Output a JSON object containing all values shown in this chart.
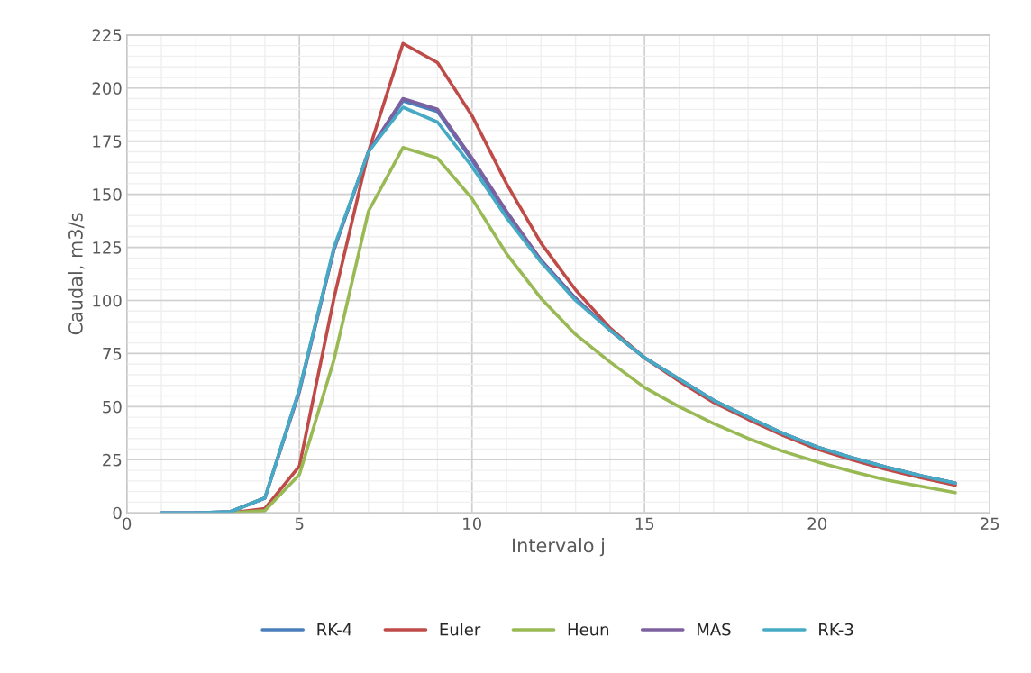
{
  "chart_data": {
    "type": "line",
    "xlabel": "Intervalo j",
    "ylabel": "Caudal, m3/s",
    "x": [
      1,
      2,
      3,
      4,
      5,
      6,
      7,
      8,
      9,
      10,
      11,
      12,
      13,
      14,
      15,
      16,
      17,
      18,
      19,
      20,
      21,
      22,
      23,
      24
    ],
    "series": [
      {
        "name": "RK-4",
        "color": "#4a7ebb",
        "values": [
          0,
          0,
          0.5,
          7,
          58,
          124,
          170,
          194,
          189,
          166,
          141,
          119,
          101,
          86,
          73,
          63,
          53,
          45,
          37.5,
          31,
          26,
          21.5,
          17.5,
          14
        ]
      },
      {
        "name": "Euler",
        "color": "#be4b48",
        "values": [
          null,
          null,
          0,
          2,
          22,
          101,
          170,
          221,
          212,
          187,
          155,
          127,
          105,
          87,
          73,
          62,
          52,
          44,
          36.5,
          30,
          25,
          20.5,
          16.5,
          13
        ]
      },
      {
        "name": "Heun",
        "color": "#98b954",
        "values": [
          null,
          null,
          0,
          1,
          18,
          72,
          142,
          172,
          167,
          148,
          122,
          101,
          84,
          71,
          59,
          50,
          42,
          35,
          29,
          24,
          19.5,
          15.5,
          12.5,
          9.5
        ]
      },
      {
        "name": "MAS",
        "color": "#7d60a0",
        "values": [
          0,
          0,
          0.5,
          7,
          57,
          124,
          170,
          195,
          190,
          167,
          142,
          119,
          101,
          86,
          73,
          63,
          53,
          45,
          37.5,
          31,
          26,
          21.5,
          17.5,
          14
        ]
      },
      {
        "name": "RK-3",
        "color": "#46aac5",
        "values": [
          0,
          0,
          0.5,
          7,
          58,
          125,
          170,
          191,
          184,
          163,
          139,
          118,
          100,
          86,
          73,
          63,
          53,
          45,
          37.5,
          31,
          26,
          21.5,
          17.5,
          14
        ]
      }
    ],
    "xlim": [
      0,
      25
    ],
    "xticks": [
      0,
      5,
      10,
      15,
      20,
      25
    ],
    "ylim": [
      0,
      225
    ],
    "yticks": [
      0,
      25,
      50,
      75,
      100,
      125,
      150,
      175,
      200,
      225
    ],
    "grid": true,
    "legend": "bottom",
    "marker": "none",
    "line_style": "solid"
  }
}
